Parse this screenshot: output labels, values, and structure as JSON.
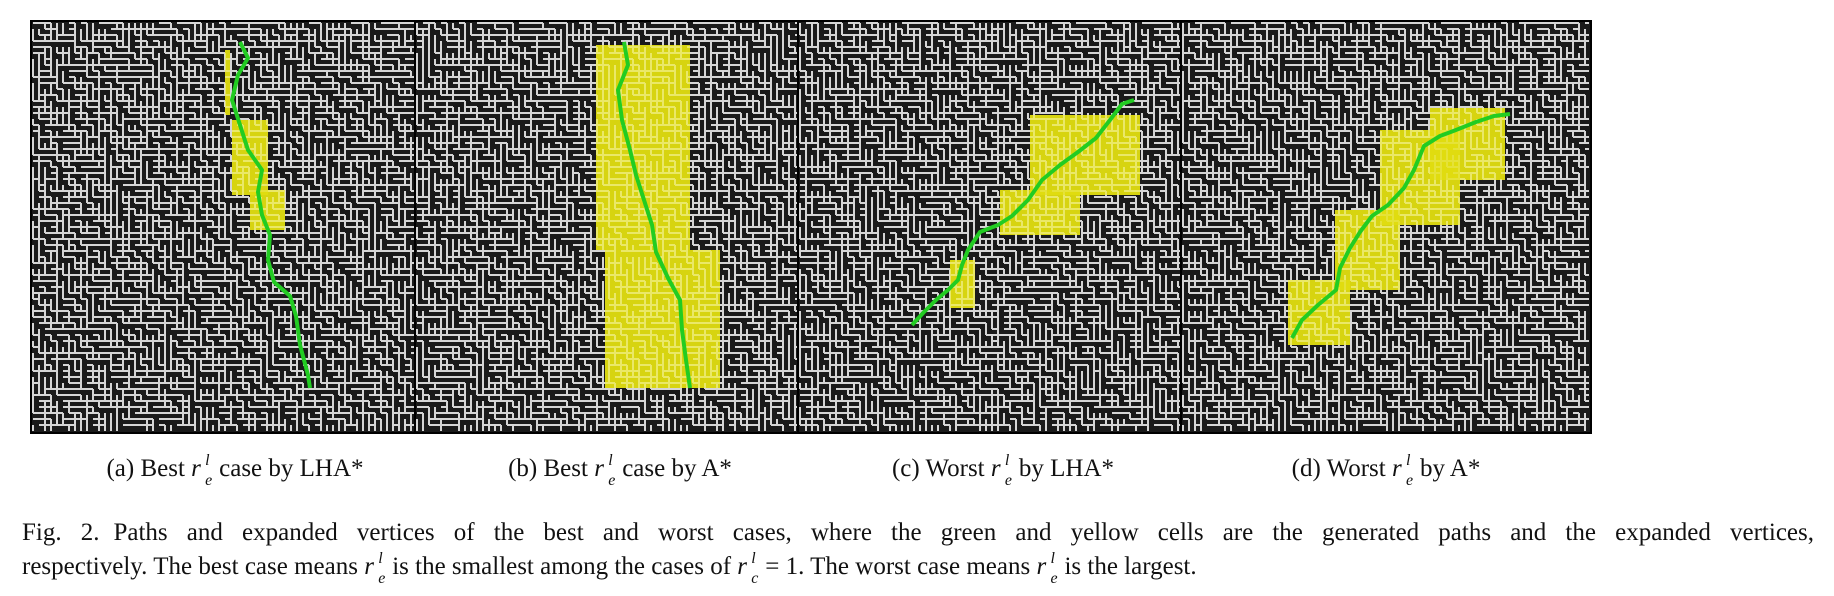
{
  "panels": [
    {
      "id": "a",
      "label": "(a)",
      "prefix": "Best",
      "suffix": "case by LHA*",
      "path": [
        [
          240,
          22
        ],
        [
          248,
          38
        ],
        [
          238,
          55
        ],
        [
          232,
          80
        ],
        [
          240,
          105
        ],
        [
          248,
          130
        ],
        [
          262,
          150
        ],
        [
          258,
          172
        ],
        [
          262,
          195
        ],
        [
          270,
          215
        ],
        [
          268,
          240
        ],
        [
          274,
          262
        ],
        [
          290,
          276
        ],
        [
          296,
          296
        ],
        [
          300,
          325
        ],
        [
          308,
          355
        ],
        [
          310,
          368
        ]
      ],
      "expanded": [
        [
          225,
          30,
          230,
          95
        ],
        [
          232,
          100,
          268,
          175
        ],
        [
          250,
          170,
          285,
          210
        ]
      ]
    },
    {
      "id": "b",
      "label": "(b)",
      "prefix": "Best",
      "suffix": "case by A*",
      "path": [
        [
          624,
          22
        ],
        [
          628,
          45
        ],
        [
          618,
          70
        ],
        [
          622,
          100
        ],
        [
          630,
          130
        ],
        [
          636,
          155
        ],
        [
          644,
          180
        ],
        [
          652,
          205
        ],
        [
          656,
          232
        ],
        [
          668,
          258
        ],
        [
          680,
          280
        ],
        [
          682,
          310
        ],
        [
          686,
          340
        ],
        [
          690,
          368
        ]
      ],
      "expanded": [
        [
          596,
          25,
          690,
          230
        ],
        [
          605,
          230,
          720,
          368
        ]
      ]
    },
    {
      "id": "c",
      "label": "(c)",
      "prefix": "Worst",
      "suffix": "by LHA*",
      "path": [
        [
          912,
          305
        ],
        [
          924,
          292
        ],
        [
          936,
          280
        ],
        [
          948,
          270
        ],
        [
          958,
          260
        ],
        [
          962,
          245
        ],
        [
          968,
          230
        ],
        [
          980,
          212
        ],
        [
          998,
          205
        ],
        [
          1012,
          196
        ],
        [
          1028,
          180
        ],
        [
          1042,
          160
        ],
        [
          1060,
          145
        ],
        [
          1078,
          132
        ],
        [
          1096,
          118
        ],
        [
          1110,
          100
        ],
        [
          1122,
          84
        ],
        [
          1134,
          80
        ]
      ],
      "expanded": [
        [
          950,
          240,
          975,
          288
        ],
        [
          1000,
          170,
          1080,
          215
        ],
        [
          1030,
          95,
          1140,
          175
        ]
      ]
    },
    {
      "id": "d",
      "label": "(d)",
      "prefix": "Worst",
      "suffix": "by A*",
      "path": [
        [
          1292,
          318
        ],
        [
          1302,
          300
        ],
        [
          1318,
          285
        ],
        [
          1336,
          270
        ],
        [
          1340,
          248
        ],
        [
          1350,
          228
        ],
        [
          1360,
          212
        ],
        [
          1372,
          196
        ],
        [
          1388,
          185
        ],
        [
          1404,
          168
        ],
        [
          1414,
          150
        ],
        [
          1424,
          126
        ],
        [
          1440,
          116
        ],
        [
          1456,
          110
        ],
        [
          1476,
          102
        ],
        [
          1494,
          96
        ],
        [
          1510,
          94
        ]
      ],
      "expanded": [
        [
          1288,
          260,
          1350,
          325
        ],
        [
          1335,
          190,
          1400,
          270
        ],
        [
          1380,
          110,
          1460,
          205
        ],
        [
          1430,
          88,
          1505,
          160
        ]
      ]
    }
  ],
  "caption": {
    "label": "Fig. 2.",
    "line1": "Paths and expanded vertices of the best and worst cases, where the green and yellow cells are the generated paths and the expanded vertices,",
    "line2a": "respectively. The best case means",
    "line2b": "is the smallest among the cases of",
    "line2c": "= 1. The worst case means",
    "line2d": "is the largest."
  },
  "symbols": {
    "r": "r",
    "sup": "l",
    "sub_e": "e",
    "sub_c": "c"
  },
  "colors": {
    "path": "#22cc22",
    "expanded": "#e0dd10",
    "wall": "#ffffff",
    "ground": "#1a1a1a"
  }
}
